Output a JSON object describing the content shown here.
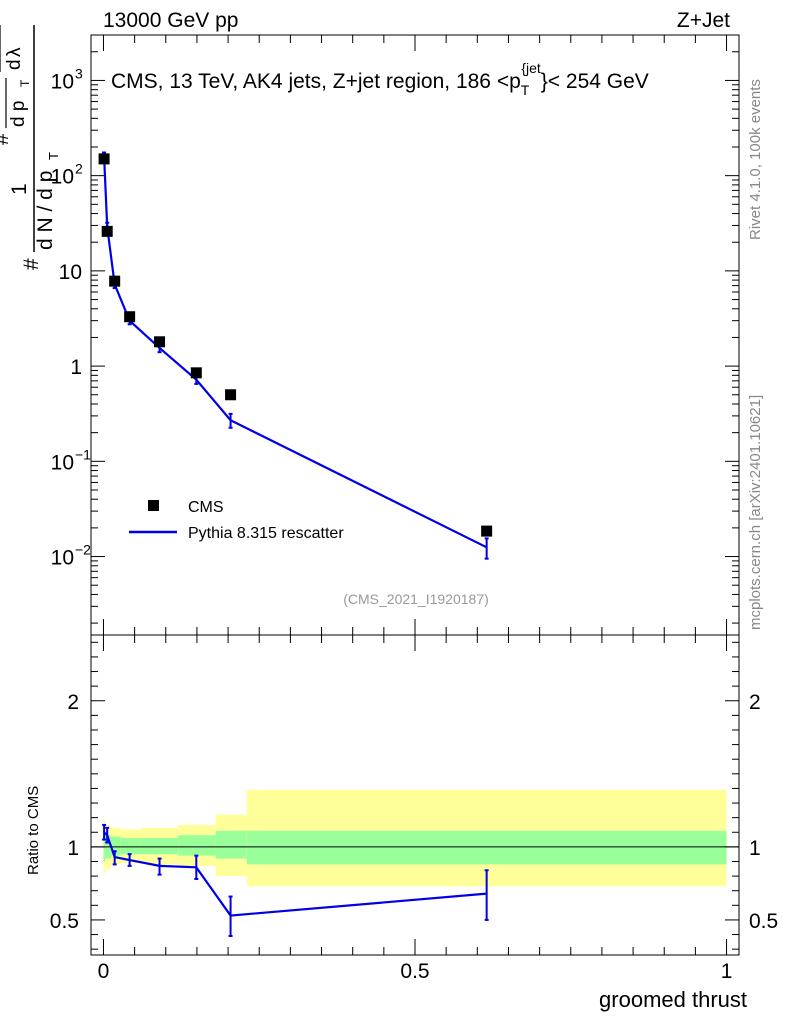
{
  "header": {
    "left": "13000 GeV pp",
    "right": "Z+Jet"
  },
  "side_labels": {
    "rivet": "Rivet 4.1.0,  100k events",
    "mcplots": "mcplots.cern.ch [arXiv:2401.10621]"
  },
  "main_title": "CMS, 13 TeV, AK4 jets, Z+jet region, 186 <p",
  "main_title_sup": "{jet",
  "main_title_sub": "T",
  "main_title_end": "}< 254 GeV",
  "analysis_id": "(CMS_2021_I1920187)",
  "ylabel_parts": [
    "#",
    "1",
    "d N / d p",
    "T",
    "#",
    "d p",
    "T",
    "d",
    "2",
    "N",
    "d",
    "λ"
  ],
  "colors": {
    "mc": "#0000e6",
    "band_inner": "#99ff99",
    "band_outer": "#ffff99",
    "data": "#000000"
  },
  "chart_data": [
    {
      "type": "scatter",
      "scale": "log",
      "xlabel": "groomed thrust",
      "ylim": [
        0.0015,
        3000
      ],
      "xlim": [
        -0.02,
        1.02
      ],
      "ytick_labels": [
        {
          "value": 0.01,
          "base": "10",
          "exp": "−2"
        },
        {
          "value": 0.1,
          "base": "10",
          "exp": "−1"
        },
        {
          "value": 1,
          "base": "1",
          "exp": ""
        },
        {
          "value": 10,
          "base": "10",
          "exp": ""
        },
        {
          "value": 100,
          "base": "10",
          "exp": "2"
        },
        {
          "value": 1000,
          "base": "10",
          "exp": "3"
        }
      ],
      "legend": [
        {
          "name": "CMS",
          "kind": "marker"
        },
        {
          "name": "Pythia 8.315 rescatter",
          "kind": "line"
        }
      ],
      "data_series": {
        "name": "CMS",
        "x": [
          0.001,
          0.006,
          0.018,
          0.042,
          0.09,
          0.149,
          0.204,
          0.615
        ],
        "y": [
          150,
          26,
          7.8,
          3.3,
          1.8,
          0.85,
          0.5,
          0.0185
        ]
      },
      "mc_series": {
        "name": "Pythia 8.315 rescatter",
        "x": [
          0.001,
          0.006,
          0.018,
          0.042,
          0.09,
          0.149,
          0.204,
          0.615
        ],
        "y": [
          160,
          29,
          7.2,
          3.0,
          1.55,
          0.72,
          0.27,
          0.0125
        ],
        "err_low": [
          15,
          3,
          0.6,
          0.25,
          0.15,
          0.07,
          0.045,
          0.003
        ],
        "err_high": [
          15,
          3,
          0.6,
          0.25,
          0.15,
          0.07,
          0.045,
          0.003
        ]
      }
    },
    {
      "type": "line",
      "scale": "linear",
      "ylabel": "Ratio to CMS",
      "xlabel": "groomed thrust",
      "ylim": [
        0.26,
        2.45
      ],
      "xlim": [
        -0.02,
        1.02
      ],
      "yticks_major": [
        0.5,
        1,
        2
      ],
      "ytick_labels": [
        "0.5",
        "1",
        "2"
      ],
      "xticks_major": [
        0,
        0.5,
        1
      ],
      "xtick_labels": [
        "0",
        "0.5",
        "1"
      ],
      "bands": [
        {
          "x0": 0.0,
          "x1": 0.003,
          "in_lo": 0.9,
          "in_hi": 1.1,
          "out_lo": 0.82,
          "out_hi": 1.18
        },
        {
          "x0": 0.003,
          "x1": 0.012,
          "in_lo": 0.92,
          "in_hi": 1.08,
          "out_lo": 0.85,
          "out_hi": 1.15
        },
        {
          "x0": 0.012,
          "x1": 0.028,
          "in_lo": 0.94,
          "in_hi": 1.07,
          "out_lo": 0.88,
          "out_hi": 1.13
        },
        {
          "x0": 0.028,
          "x1": 0.06,
          "in_lo": 0.95,
          "in_hi": 1.06,
          "out_lo": 0.89,
          "out_hi": 1.12
        },
        {
          "x0": 0.06,
          "x1": 0.12,
          "in_lo": 0.95,
          "in_hi": 1.06,
          "out_lo": 0.88,
          "out_hi": 1.13
        },
        {
          "x0": 0.12,
          "x1": 0.18,
          "in_lo": 0.94,
          "in_hi": 1.08,
          "out_lo": 0.87,
          "out_hi": 1.15
        },
        {
          "x0": 0.18,
          "x1": 0.23,
          "in_lo": 0.92,
          "in_hi": 1.11,
          "out_lo": 0.8,
          "out_hi": 1.22
        },
        {
          "x0": 0.23,
          "x1": 1.0,
          "in_lo": 0.88,
          "in_hi": 1.11,
          "out_lo": 0.73,
          "out_hi": 1.39
        }
      ],
      "mc_ratio": {
        "x": [
          0.001,
          0.006,
          0.018,
          0.042,
          0.09,
          0.149,
          0.204,
          0.615
        ],
        "y": [
          1.1,
          1.08,
          0.93,
          0.91,
          0.87,
          0.86,
          0.53,
          0.68
        ],
        "err_low": [
          0.05,
          0.05,
          0.05,
          0.04,
          0.06,
          0.08,
          0.14,
          0.18
        ],
        "err_high": [
          0.05,
          0.05,
          0.04,
          0.04,
          0.05,
          0.08,
          0.13,
          0.16
        ]
      }
    }
  ]
}
